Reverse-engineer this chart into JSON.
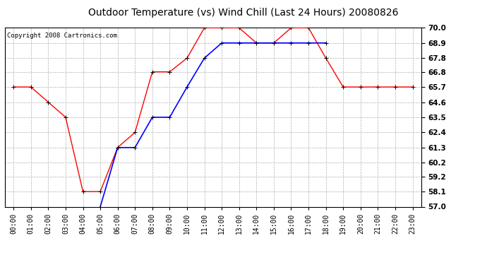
{
  "title": "Outdoor Temperature (vs) Wind Chill (Last 24 Hours) 20080826",
  "copyright": "Copyright 2008 Cartronics.com",
  "x_labels": [
    "00:00",
    "01:00",
    "02:00",
    "03:00",
    "04:00",
    "05:00",
    "06:00",
    "07:00",
    "08:00",
    "09:00",
    "10:00",
    "11:00",
    "12:00",
    "13:00",
    "14:00",
    "15:00",
    "16:00",
    "17:00",
    "18:00",
    "19:00",
    "20:00",
    "21:00",
    "22:00",
    "23:00"
  ],
  "temp_red": [
    65.7,
    65.7,
    64.6,
    63.5,
    58.1,
    58.1,
    61.3,
    62.4,
    66.8,
    66.8,
    67.8,
    70.0,
    70.0,
    70.0,
    68.9,
    68.9,
    70.0,
    70.0,
    67.8,
    65.7,
    65.7,
    65.7,
    65.7,
    65.7
  ],
  "temp_blue": [
    null,
    null,
    null,
    null,
    null,
    57.0,
    61.3,
    61.3,
    63.5,
    63.5,
    65.7,
    67.8,
    68.9,
    68.9,
    68.9,
    68.9,
    68.9,
    68.9,
    68.9,
    null,
    null,
    null,
    null,
    null
  ],
  "ylim_min": 57.0,
  "ylim_max": 70.0,
  "yticks": [
    57.0,
    58.1,
    59.2,
    60.2,
    61.3,
    62.4,
    63.5,
    64.6,
    65.7,
    66.8,
    67.8,
    68.9,
    70.0
  ],
  "red_color": "#ff0000",
  "blue_color": "#0000ff",
  "bg_color": "#ffffff",
  "grid_color": "#b0b0b0",
  "title_fontsize": 10,
  "copyright_fontsize": 6.5,
  "tick_fontsize": 7,
  "ytick_fontsize": 7.5
}
